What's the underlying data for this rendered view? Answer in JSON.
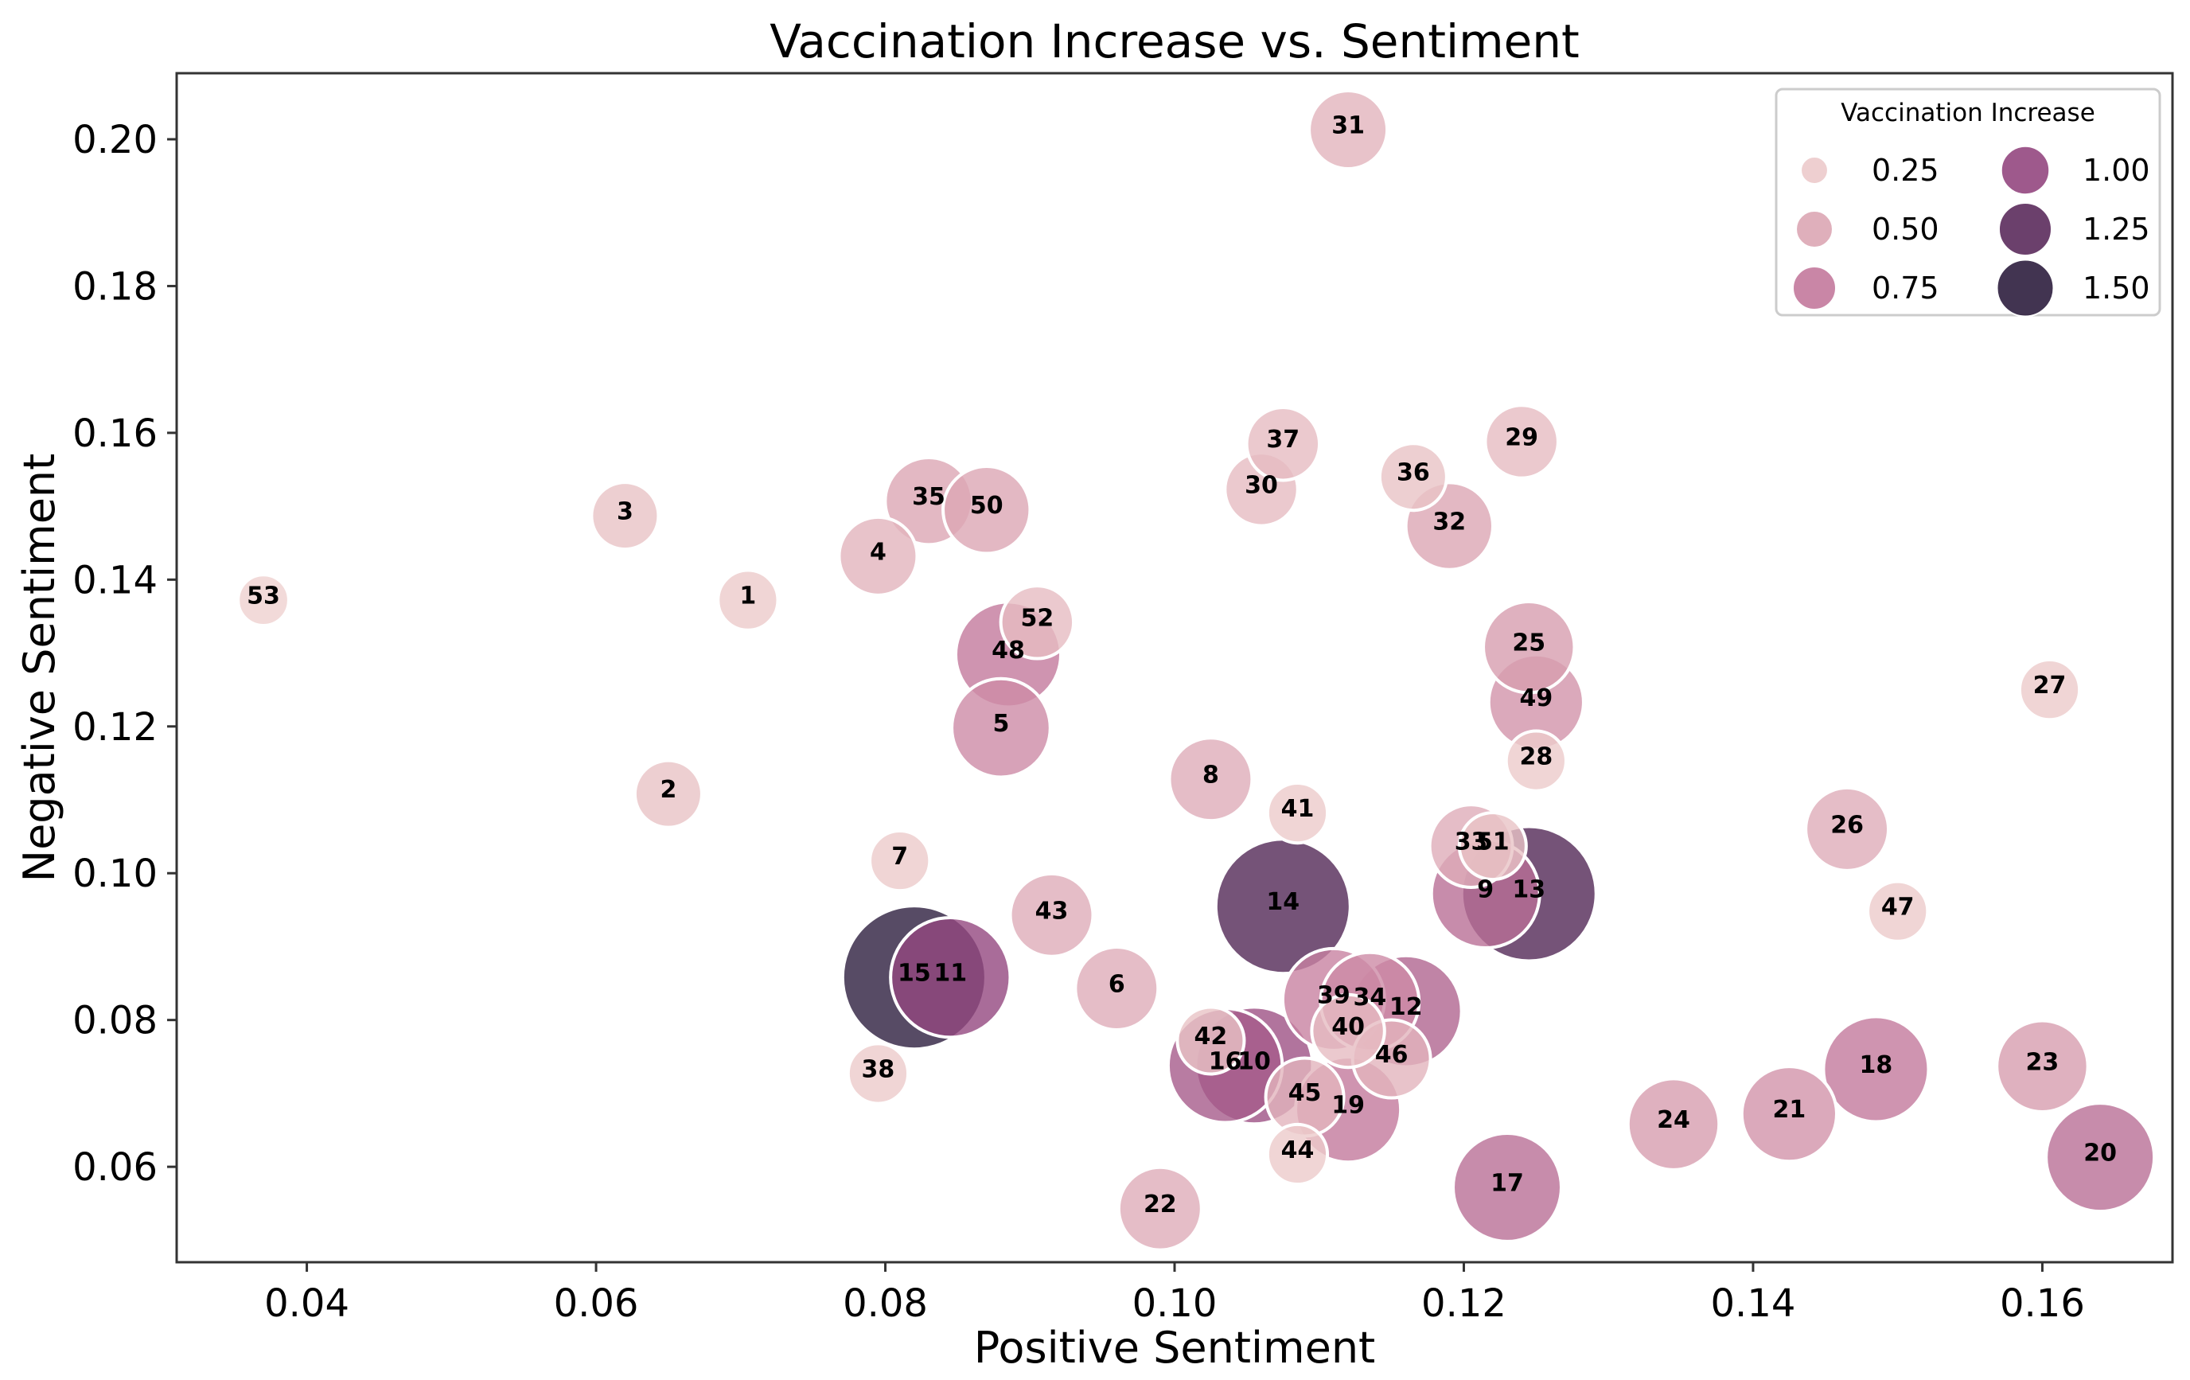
{
  "chart_data": {
    "type": "scatter",
    "title": "Vaccination Increase vs. Sentiment",
    "xlabel": "Positive Sentiment",
    "ylabel": "Negative Sentiment",
    "xlim": [
      0.031,
      0.169
    ],
    "ylim": [
      0.047,
      0.209
    ],
    "xticks": [
      0.04,
      0.06,
      0.08,
      0.1,
      0.12,
      0.14,
      0.16
    ],
    "yticks": [
      0.06,
      0.08,
      0.1,
      0.12,
      0.14,
      0.16,
      0.18,
      0.2
    ],
    "xtick_labels": [
      "0.04",
      "0.06",
      "0.08",
      "0.10",
      "0.12",
      "0.14",
      "0.16"
    ],
    "ytick_labels": [
      "0.06",
      "0.08",
      "0.10",
      "0.12",
      "0.14",
      "0.16",
      "0.18",
      "0.20"
    ],
    "size_and_color_variable": "Vaccination Increase",
    "legend": {
      "title": "Vaccination Increase",
      "placement": "top-right",
      "entries": [
        {
          "label": "0.25",
          "value": 0.25
        },
        {
          "label": "0.50",
          "value": 0.5
        },
        {
          "label": "0.75",
          "value": 0.75
        },
        {
          "label": "1.00",
          "value": 1.0
        },
        {
          "label": "1.25",
          "value": 1.25
        },
        {
          "label": "1.50",
          "value": 1.5
        }
      ]
    },
    "colors": {
      "low": "#efd1cf",
      "mid_low": "#dca6b4",
      "mid": "#c3799c",
      "mid_high": "#93477f",
      "high": "#5b2b5c",
      "top": "#2d1e3e",
      "edge": "#ffffff",
      "frame": "#333333"
    },
    "points": [
      {
        "id": "1",
        "x": 0.0705,
        "y": 0.1372,
        "v": 0.25
      },
      {
        "id": "2",
        "x": 0.065,
        "y": 0.1108,
        "v": 0.3
      },
      {
        "id": "3",
        "x": 0.062,
        "y": 0.1487,
        "v": 0.3
      },
      {
        "id": "4",
        "x": 0.0795,
        "y": 0.1432,
        "v": 0.4
      },
      {
        "id": "5",
        "x": 0.088,
        "y": 0.1198,
        "v": 0.65
      },
      {
        "id": "6",
        "x": 0.096,
        "y": 0.0843,
        "v": 0.45
      },
      {
        "id": "7",
        "x": 0.081,
        "y": 0.1017,
        "v": 0.25
      },
      {
        "id": "8",
        "x": 0.1025,
        "y": 0.1128,
        "v": 0.45
      },
      {
        "id": "9",
        "x": 0.1215,
        "y": 0.0972,
        "v": 0.8
      },
      {
        "id": "10",
        "x": 0.1055,
        "y": 0.0738,
        "v": 0.95
      },
      {
        "id": "11",
        "x": 0.0845,
        "y": 0.0858,
        "v": 1.0
      },
      {
        "id": "12",
        "x": 0.116,
        "y": 0.0812,
        "v": 0.85
      },
      {
        "id": "13",
        "x": 0.1245,
        "y": 0.0972,
        "v": 1.3
      },
      {
        "id": "14",
        "x": 0.1075,
        "y": 0.0955,
        "v": 1.3
      },
      {
        "id": "15",
        "x": 0.082,
        "y": 0.0858,
        "v": 1.5
      },
      {
        "id": "16",
        "x": 0.1035,
        "y": 0.0738,
        "v": 0.9
      },
      {
        "id": "17",
        "x": 0.123,
        "y": 0.0572,
        "v": 0.8
      },
      {
        "id": "18",
        "x": 0.1485,
        "y": 0.0733,
        "v": 0.75
      },
      {
        "id": "19",
        "x": 0.112,
        "y": 0.0678,
        "v": 0.75
      },
      {
        "id": "20",
        "x": 0.164,
        "y": 0.0613,
        "v": 0.8
      },
      {
        "id": "21",
        "x": 0.1425,
        "y": 0.0672,
        "v": 0.6
      },
      {
        "id": "22",
        "x": 0.099,
        "y": 0.0543,
        "v": 0.45
      },
      {
        "id": "23",
        "x": 0.16,
        "y": 0.0737,
        "v": 0.55
      },
      {
        "id": "24",
        "x": 0.1345,
        "y": 0.0658,
        "v": 0.55
      },
      {
        "id": "25",
        "x": 0.1245,
        "y": 0.1308,
        "v": 0.55
      },
      {
        "id": "26",
        "x": 0.1465,
        "y": 0.106,
        "v": 0.45
      },
      {
        "id": "27",
        "x": 0.1605,
        "y": 0.125,
        "v": 0.25
      },
      {
        "id": "28",
        "x": 0.125,
        "y": 0.1153,
        "v": 0.25
      },
      {
        "id": "29",
        "x": 0.124,
        "y": 0.1588,
        "v": 0.35
      },
      {
        "id": "30",
        "x": 0.106,
        "y": 0.1523,
        "v": 0.35
      },
      {
        "id": "31",
        "x": 0.112,
        "y": 0.2013,
        "v": 0.4
      },
      {
        "id": "32",
        "x": 0.119,
        "y": 0.1473,
        "v": 0.5
      },
      {
        "id": "33",
        "x": 0.1205,
        "y": 0.1037,
        "v": 0.45
      },
      {
        "id": "34",
        "x": 0.1135,
        "y": 0.0825,
        "v": 0.65
      },
      {
        "id": "35",
        "x": 0.083,
        "y": 0.1507,
        "v": 0.5
      },
      {
        "id": "36",
        "x": 0.1165,
        "y": 0.154,
        "v": 0.3
      },
      {
        "id": "37",
        "x": 0.1075,
        "y": 0.1585,
        "v": 0.35
      },
      {
        "id": "38",
        "x": 0.0795,
        "y": 0.0727,
        "v": 0.25
      },
      {
        "id": "39",
        "x": 0.111,
        "y": 0.0828,
        "v": 0.7
      },
      {
        "id": "40",
        "x": 0.112,
        "y": 0.0785,
        "v": 0.35
      },
      {
        "id": "41",
        "x": 0.1085,
        "y": 0.1082,
        "v": 0.25
      },
      {
        "id": "42",
        "x": 0.1025,
        "y": 0.0772,
        "v": 0.3
      },
      {
        "id": "43",
        "x": 0.0915,
        "y": 0.0943,
        "v": 0.45
      },
      {
        "id": "44",
        "x": 0.1085,
        "y": 0.0617,
        "v": 0.25
      },
      {
        "id": "45",
        "x": 0.109,
        "y": 0.0695,
        "v": 0.4
      },
      {
        "id": "46",
        "x": 0.115,
        "y": 0.0747,
        "v": 0.4
      },
      {
        "id": "47",
        "x": 0.15,
        "y": 0.0948,
        "v": 0.25
      },
      {
        "id": "48",
        "x": 0.0885,
        "y": 0.1298,
        "v": 0.75
      },
      {
        "id": "49",
        "x": 0.125,
        "y": 0.1233,
        "v": 0.6
      },
      {
        "id": "50",
        "x": 0.087,
        "y": 0.1495,
        "v": 0.5
      },
      {
        "id": "51",
        "x": 0.122,
        "y": 0.1037,
        "v": 0.3
      },
      {
        "id": "52",
        "x": 0.0905,
        "y": 0.1342,
        "v": 0.35
      },
      {
        "id": "53",
        "x": 0.037,
        "y": 0.1372,
        "v": 0.2
      }
    ]
  }
}
